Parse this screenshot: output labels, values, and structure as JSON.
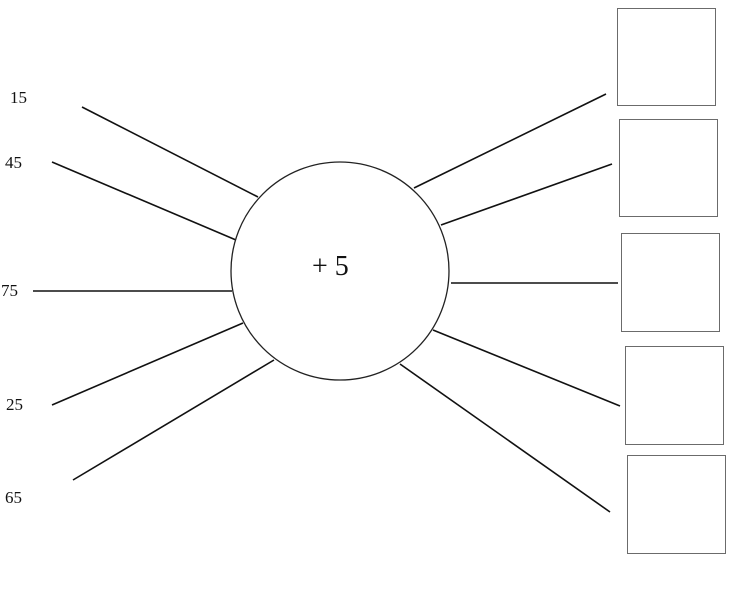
{
  "operator": "+ 5",
  "inputs": [
    {
      "value": "15"
    },
    {
      "value": "45"
    },
    {
      "value": "75"
    },
    {
      "value": "25"
    },
    {
      "value": "65"
    }
  ],
  "answers": [
    {
      "value": ""
    },
    {
      "value": ""
    },
    {
      "value": ""
    },
    {
      "value": ""
    },
    {
      "value": ""
    }
  ],
  "colors": {
    "line": "#111111",
    "box_border": "#6b6b6b",
    "circle_border": "#222222"
  }
}
